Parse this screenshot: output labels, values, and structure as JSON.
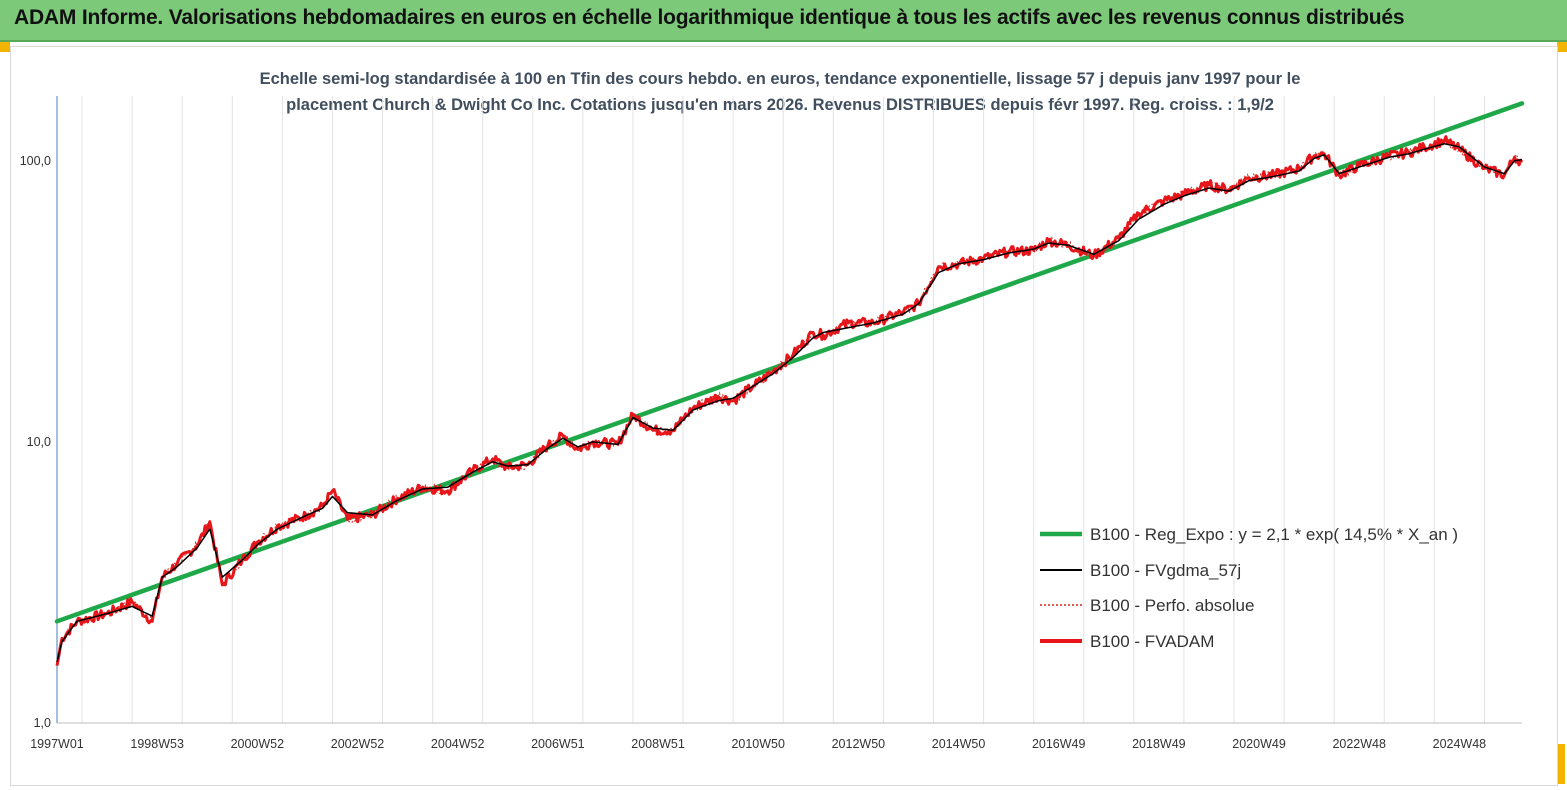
{
  "banner": {
    "title": "ADAM Informe. Valorisations hebdomadaires en euros en échelle logarithmique identique à tous les actifs avec les revenus connus distribués",
    "background": "#7dc97a",
    "corner_color": "#f2b400"
  },
  "chart_data": {
    "type": "line",
    "title_lines": [
      "Echelle semi-log standardisée à 100 en Tfin des cours hebdo. en euros, tendance exponentielle, lissage 57 j depuis janv 1997 pour le",
      "placement Church & Dwight Co Inc. Cotations jusqu'en mars 2026. Revenus DISTRIBUES depuis févr 1997. Reg. croiss. : 1,9/2"
    ],
    "y_scale": "log",
    "ylim": [
      1,
      170
    ],
    "y_ticks": [
      {
        "value": 1,
        "label": "1,0"
      },
      {
        "value": 10,
        "label": "10,0"
      },
      {
        "value": 100,
        "label": "100,0"
      }
    ],
    "xlim": [
      1997.0,
      2026.25
    ],
    "x_ticks": [
      {
        "year": 1997.0,
        "label": "1997W01"
      },
      {
        "year": 1999.0,
        "label": "1998W53"
      },
      {
        "year": 2001.0,
        "label": "2000W52"
      },
      {
        "year": 2003.0,
        "label": "2002W52"
      },
      {
        "year": 2005.0,
        "label": "2004W52"
      },
      {
        "year": 2007.0,
        "label": "2006W51"
      },
      {
        "year": 2009.0,
        "label": "2008W51"
      },
      {
        "year": 2011.0,
        "label": "2010W50"
      },
      {
        "year": 2013.0,
        "label": "2012W50"
      },
      {
        "year": 2015.0,
        "label": "2014W50"
      },
      {
        "year": 2017.0,
        "label": "2016W49"
      },
      {
        "year": 2019.0,
        "label": "2018W49"
      },
      {
        "year": 2021.0,
        "label": "2020W49"
      },
      {
        "year": 2023.0,
        "label": "2022W48"
      },
      {
        "year": 2025.0,
        "label": "2024W48"
      }
    ],
    "grid": "vertical",
    "legend_position": "bottom-right",
    "series": [
      {
        "name": "B100 - Reg_Expo : y = 2,1 * exp( 14,5% *  X_an )",
        "color": "#1fa849",
        "style": "thick",
        "x": [
          1997.0,
          2026.25
        ],
        "y": [
          2.3,
          160
        ]
      },
      {
        "name": "B100 - FVgdma_57j",
        "color": "#000000",
        "style": "thin",
        "x": [
          1997.0,
          1997.1,
          1997.4,
          1998.0,
          1998.5,
          1998.9,
          1999.1,
          1999.4,
          1999.8,
          2000.05,
          2000.3,
          2000.7,
          2001.0,
          2001.4,
          2002.0,
          2002.3,
          2002.5,
          2002.8,
          2003.3,
          2003.8,
          2004.3,
          2004.8,
          2005.3,
          2005.7,
          2006.0,
          2006.4,
          2006.8,
          2007.1,
          2007.4,
          2007.7,
          2008.2,
          2008.5,
          2008.9,
          2009.3,
          2009.7,
          2010.2,
          2010.5,
          2010.9,
          2011.3,
          2011.7,
          2012.1,
          2012.3,
          2012.8,
          2013.3,
          2013.9,
          2014.2,
          2014.6,
          2015.0,
          2015.5,
          2016.0,
          2016.5,
          2016.8,
          2017.2,
          2017.7,
          2018.2,
          2018.6,
          2019.1,
          2019.5,
          2020.0,
          2020.4,
          2020.8,
          2021.3,
          2021.8,
          2022.1,
          2022.3,
          2022.6,
          2023.0,
          2023.6,
          2024.0,
          2024.3,
          2024.7,
          2025.0,
          2025.5,
          2025.9,
          2026.1,
          2026.25
        ],
        "y": [
          1.65,
          1.95,
          2.3,
          2.45,
          2.6,
          2.4,
          3.3,
          3.6,
          4.2,
          4.9,
          3.3,
          3.8,
          4.3,
          4.9,
          5.5,
          5.8,
          6.4,
          5.6,
          5.5,
          6.2,
          6.8,
          6.9,
          7.8,
          8.5,
          8.2,
          8.3,
          9.5,
          10.3,
          9.6,
          10.0,
          9.8,
          12.2,
          11.2,
          11.0,
          13.0,
          14.0,
          14.3,
          15.8,
          17.5,
          20.0,
          23.5,
          24.5,
          25.5,
          26.5,
          28.5,
          31.0,
          40.0,
          43.0,
          44.5,
          47.0,
          48.5,
          51.0,
          50.0,
          46.5,
          52.0,
          62.0,
          70.0,
          75.0,
          80.0,
          78.0,
          85.0,
          88.0,
          92.0,
          102.0,
          105.0,
          90.0,
          95.0,
          103.0,
          106.0,
          110.0,
          115.0,
          112.0,
          95.0,
          90.0,
          100.0,
          101.0
        ]
      },
      {
        "name": "B100 - Perfo. absolue",
        "color": "#d9221c",
        "style": "dotted"
      },
      {
        "name": "B100 - FVADAM",
        "color": "#e8141a",
        "style": "thick",
        "x": [
          1997.0,
          1997.1,
          1997.4,
          1998.0,
          1998.5,
          1998.9,
          1999.1,
          1999.4,
          1999.8,
          2000.05,
          2000.3,
          2000.7,
          2001.0,
          2001.4,
          2002.0,
          2002.3,
          2002.5,
          2002.8,
          2003.3,
          2003.8,
          2004.3,
          2004.8,
          2005.3,
          2005.7,
          2006.0,
          2006.4,
          2006.8,
          2007.1,
          2007.4,
          2007.7,
          2008.2,
          2008.5,
          2008.9,
          2009.3,
          2009.7,
          2010.2,
          2010.5,
          2010.9,
          2011.3,
          2011.7,
          2012.1,
          2012.3,
          2012.8,
          2013.3,
          2013.9,
          2014.2,
          2014.6,
          2015.0,
          2015.5,
          2016.0,
          2016.5,
          2016.8,
          2017.2,
          2017.7,
          2018.2,
          2018.6,
          2019.1,
          2019.5,
          2020.0,
          2020.4,
          2020.8,
          2021.3,
          2021.8,
          2022.1,
          2022.3,
          2022.6,
          2023.0,
          2023.6,
          2024.0,
          2024.3,
          2024.7,
          2025.0,
          2025.5,
          2025.9,
          2026.1,
          2026.25
        ],
        "y": [
          1.6,
          2.0,
          2.3,
          2.45,
          2.7,
          2.3,
          3.3,
          3.7,
          4.3,
          5.2,
          3.1,
          3.8,
          4.4,
          5.0,
          5.5,
          5.9,
          6.7,
          5.3,
          5.5,
          6.3,
          6.9,
          6.7,
          7.9,
          8.7,
          8.1,
          8.3,
          9.7,
          10.5,
          9.4,
          10.0,
          9.8,
          12.5,
          11.0,
          11.0,
          13.2,
          14.5,
          14.0,
          15.8,
          17.8,
          20.5,
          24.5,
          24.0,
          26.5,
          26.5,
          29.0,
          31.0,
          42.0,
          43.0,
          45.0,
          47.5,
          48.0,
          52.0,
          50.0,
          46.0,
          53.0,
          65.0,
          72.0,
          76.0,
          82.0,
          79.0,
          87.0,
          89.0,
          94.0,
          104.0,
          106.0,
          89.0,
          96.0,
          104.0,
          107.0,
          112.0,
          118.0,
          110.0,
          94.0,
          89.0,
          103.0,
          99.0
        ]
      }
    ]
  }
}
